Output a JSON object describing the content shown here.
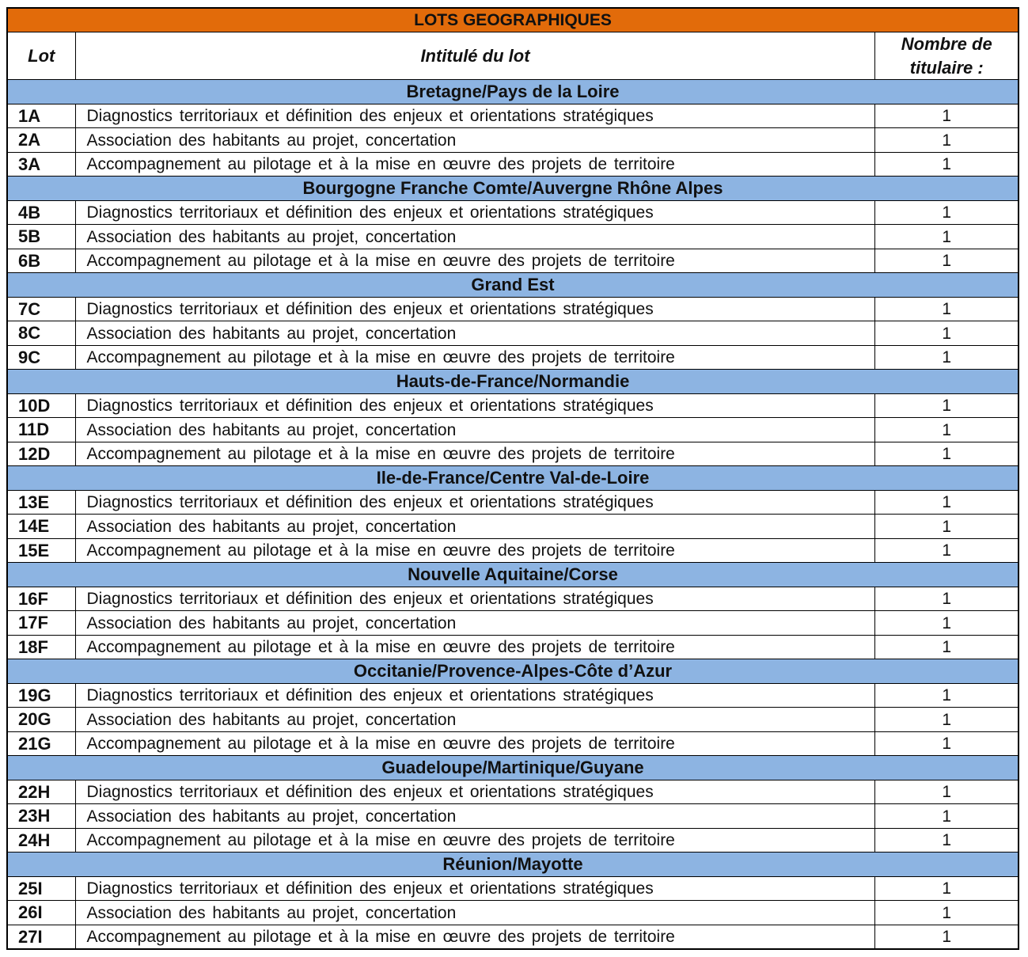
{
  "title": "LOTS GEOGRAPHIQUES",
  "headers": {
    "lot": "Lot",
    "intitule": "Intitulé du lot",
    "nombre_line1": "Nombre de",
    "nombre_line2": "titulaire :"
  },
  "colors": {
    "title_bg": "#E26B0A",
    "region_bg": "#8DB4E2"
  },
  "groups": [
    {
      "region": "Bretagne/Pays de la Loire",
      "lots": [
        {
          "lot": "1A",
          "intitule": "Diagnostics territoriaux et définition des enjeux et orientations stratégiques",
          "nombre": "1"
        },
        {
          "lot": "2A",
          "intitule": "Association des habitants au projet, concertation",
          "nombre": "1"
        },
        {
          "lot": "3A",
          "intitule": "Accompagnement au pilotage et à la mise en œuvre des projets de territoire",
          "nombre": "1"
        }
      ]
    },
    {
      "region": "Bourgogne Franche Comte/Auvergne Rhône Alpes",
      "lots": [
        {
          "lot": "4B",
          "intitule": "Diagnostics territoriaux et définition des enjeux et orientations stratégiques",
          "nombre": "1"
        },
        {
          "lot": "5B",
          "intitule": "Association des habitants au projet, concertation",
          "nombre": "1"
        },
        {
          "lot": "6B",
          "intitule": "Accompagnement au pilotage et à la mise en œuvre des projets de territoire",
          "nombre": "1"
        }
      ]
    },
    {
      "region": "Grand Est",
      "lots": [
        {
          "lot": "7C",
          "intitule": "Diagnostics territoriaux et définition des enjeux et orientations stratégiques",
          "nombre": "1"
        },
        {
          "lot": "8C",
          "intitule": "Association des habitants au projet, concertation",
          "nombre": "1"
        },
        {
          "lot": "9C",
          "intitule": "Accompagnement au pilotage et à la mise en œuvre des projets de territoire",
          "nombre": "1"
        }
      ]
    },
    {
      "region": "Hauts-de-France/Normandie",
      "lots": [
        {
          "lot": "10D",
          "intitule": "Diagnostics territoriaux et définition des enjeux et orientations stratégiques",
          "nombre": "1"
        },
        {
          "lot": "11D",
          "intitule": "Association des habitants au projet, concertation",
          "nombre": "1"
        },
        {
          "lot": "12D",
          "intitule": "Accompagnement au pilotage et à la mise en œuvre des projets de territoire",
          "nombre": "1"
        }
      ]
    },
    {
      "region": "Ile-de-France/Centre Val-de-Loire",
      "lots": [
        {
          "lot": "13E",
          "intitule": "Diagnostics territoriaux et définition des enjeux et orientations stratégiques",
          "nombre": "1"
        },
        {
          "lot": "14E",
          "intitule": "Association des habitants au projet, concertation",
          "nombre": "1"
        },
        {
          "lot": "15E",
          "intitule": "Accompagnement au pilotage et à la mise en œuvre des projets de territoire",
          "nombre": "1"
        }
      ]
    },
    {
      "region": "Nouvelle Aquitaine/Corse",
      "lots": [
        {
          "lot": "16F",
          "intitule": "Diagnostics territoriaux et définition des enjeux et orientations stratégiques",
          "nombre": "1"
        },
        {
          "lot": "17F",
          "intitule": "Association des habitants au projet, concertation",
          "nombre": "1"
        },
        {
          "lot": "18F",
          "intitule": "Accompagnement au pilotage et à la mise en œuvre des projets de territoire",
          "nombre": "1"
        }
      ]
    },
    {
      "region": "Occitanie/Provence-Alpes-Côte d’Azur",
      "lots": [
        {
          "lot": "19G",
          "intitule": "Diagnostics territoriaux et définition des enjeux et orientations stratégiques",
          "nombre": "1"
        },
        {
          "lot": "20G",
          "intitule": "Association des habitants au projet, concertation",
          "nombre": "1"
        },
        {
          "lot": "21G",
          "intitule": "Accompagnement au pilotage et à la mise en œuvre des projets de territoire",
          "nombre": "1"
        }
      ]
    },
    {
      "region": "Guadeloupe/Martinique/Guyane",
      "lots": [
        {
          "lot": "22H",
          "intitule": "Diagnostics territoriaux et définition des enjeux et orientations stratégiques",
          "nombre": "1"
        },
        {
          "lot": "23H",
          "intitule": "Association des habitants au projet, concertation",
          "nombre": "1"
        },
        {
          "lot": "24H",
          "intitule": "Accompagnement au pilotage et à la mise en œuvre des projets de territoire",
          "nombre": "1"
        }
      ]
    },
    {
      "region": "Réunion/Mayotte",
      "lots": [
        {
          "lot": "25I",
          "intitule": "Diagnostics territoriaux et définition des enjeux et orientations stratégiques",
          "nombre": "1"
        },
        {
          "lot": "26I",
          "intitule": "Association des habitants au projet, concertation",
          "nombre": "1"
        },
        {
          "lot": "27I",
          "intitule": "Accompagnement au pilotage et à la mise en œuvre des projets de territoire",
          "nombre": "1"
        }
      ]
    }
  ]
}
